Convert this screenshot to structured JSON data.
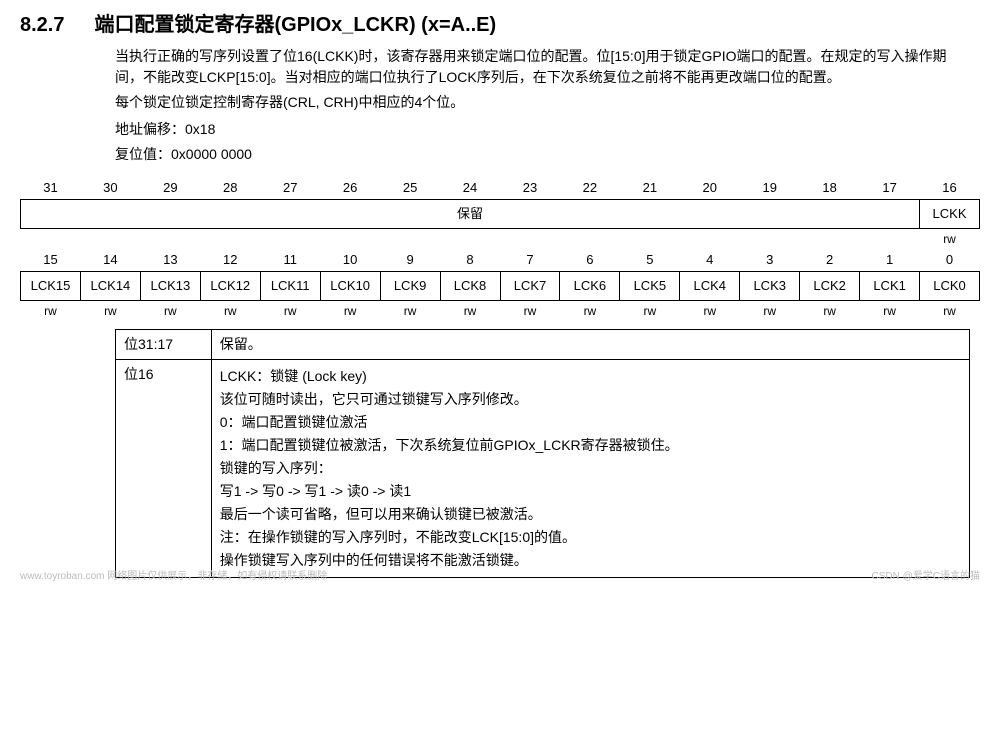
{
  "header": {
    "section_num": "8.2.7",
    "title": "端口配置锁定寄存器(GPIOx_LCKR) (x=A..E)"
  },
  "intro": {
    "p1": "当执行正确的写序列设置了位16(LCKK)时，该寄存器用来锁定端口位的配置。位[15:0]用于锁定GPIO端口的配置。在规定的写入操作期间，不能改变LCKP[15:0]。当对相应的端口位执行了LOCK序列后，在下次系统复位之前将不能再更改端口位的配置。",
    "p2": "每个锁定位锁定控制寄存器(CRL, CRH)中相应的4个位。",
    "addr_label": "地址偏移：",
    "addr_value": "0x18",
    "reset_label": "复位值：",
    "reset_value": "0x0000 0000"
  },
  "bit_table_high": {
    "nums": [
      "31",
      "30",
      "29",
      "28",
      "27",
      "26",
      "25",
      "24",
      "23",
      "22",
      "21",
      "20",
      "19",
      "18",
      "17",
      "16"
    ],
    "reserved_label": "保留",
    "lckk_label": "LCKK",
    "lckk_rw": "rw"
  },
  "bit_table_low": {
    "nums": [
      "15",
      "14",
      "13",
      "12",
      "11",
      "10",
      "9",
      "8",
      "7",
      "6",
      "5",
      "4",
      "3",
      "2",
      "1",
      "0"
    ],
    "names": [
      "LCK15",
      "LCK14",
      "LCK13",
      "LCK12",
      "LCK11",
      "LCK10",
      "LCK9",
      "LCK8",
      "LCK7",
      "LCK6",
      "LCK5",
      "LCK4",
      "LCK3",
      "LCK2",
      "LCK1",
      "LCK0"
    ],
    "rw": [
      "rw",
      "rw",
      "rw",
      "rw",
      "rw",
      "rw",
      "rw",
      "rw",
      "rw",
      "rw",
      "rw",
      "rw",
      "rw",
      "rw",
      "rw",
      "rw"
    ]
  },
  "desc": {
    "row1_bit": "位31:17",
    "row1_desc": "保留。",
    "row2_bit": "位16",
    "row2_title": "LCKK：锁键 (Lock key)",
    "row2_l1": "该位可随时读出，它只可通过锁键写入序列修改。",
    "row2_l2": "0：端口配置锁键位激活",
    "row2_l3": "1：端口配置锁键位被激活，下次系统复位前GPIOx_LCKR寄存器被锁住。",
    "row2_l4": "锁键的写入序列：",
    "row2_l5": "写1 -> 写0 -> 写1 -> 读0 -> 读1",
    "row2_l6": "最后一个读可省略，但可以用来确认锁键已被激活。",
    "row2_l7": "注：在操作锁键的写入序列时，不能改变LCK[15:0]的值。",
    "row2_l8": "操作锁键写入序列中的任何错误将不能激活锁键。"
  },
  "watermarks": {
    "left": "www.toyroban.com 网络图片仅供展示，非存储，如有侵权请联系删除",
    "right": "CSDN @爱学C语言的猫"
  }
}
